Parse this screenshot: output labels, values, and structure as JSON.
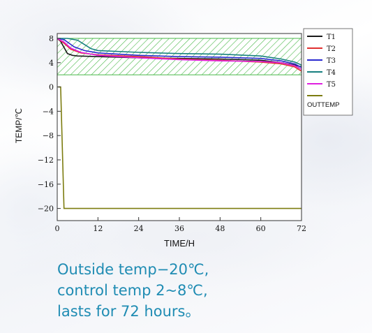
{
  "chart_data": {
    "type": "line",
    "xlabel": "TIME/H",
    "ylabel": "TEMP/℃",
    "xlim": [
      0,
      72
    ],
    "ylim": [
      -22,
      8.8
    ],
    "xticks": [
      0,
      12,
      24,
      36,
      48,
      60,
      72
    ],
    "yticks": [
      8,
      4,
      0,
      -4,
      -8,
      -12,
      -16,
      -20
    ],
    "grid": false,
    "legend_position": "right",
    "control_band": {
      "min": 2,
      "max": 8,
      "pattern": "green diagonal hatch"
    },
    "series": [
      {
        "name": "T1",
        "color": "#1a1a1a",
        "x": [
          0,
          1,
          3,
          4.5,
          6,
          12,
          24,
          36,
          48,
          60,
          66,
          70,
          72
        ],
        "y": [
          8,
          7.5,
          5.5,
          5.2,
          5.1,
          5.0,
          4.8,
          4.7,
          4.6,
          4.4,
          4.0,
          3.6,
          3.3
        ]
      },
      {
        "name": "T2",
        "color": "#e03030",
        "x": [
          0,
          2,
          4,
          7,
          12,
          24,
          36,
          48,
          60,
          66,
          70,
          72
        ],
        "y": [
          8,
          7.2,
          6.2,
          5.6,
          5.3,
          5.0,
          4.6,
          4.4,
          4.1,
          3.8,
          3.3,
          2.6
        ]
      },
      {
        "name": "T3",
        "color": "#2a2ad0",
        "x": [
          0,
          2,
          5,
          8,
          12,
          24,
          36,
          48,
          60,
          66,
          70,
          72
        ],
        "y": [
          8,
          7.8,
          6.6,
          6.0,
          5.6,
          5.2,
          5.0,
          4.9,
          4.7,
          4.3,
          3.8,
          3.2
        ]
      },
      {
        "name": "T4",
        "color": "#178080",
        "x": [
          0,
          3,
          6,
          8,
          10,
          12,
          24,
          36,
          48,
          60,
          66,
          70,
          72
        ],
        "y": [
          8,
          8.0,
          7.7,
          7.0,
          6.3,
          6.0,
          5.7,
          5.5,
          5.4,
          5.1,
          4.6,
          4.1,
          3.6
        ]
      },
      {
        "name": "T5",
        "color": "#e020e0",
        "x": [
          0,
          2,
          4,
          7,
          12,
          24,
          36,
          48,
          60,
          66,
          70,
          72
        ],
        "y": [
          8,
          7.4,
          6.4,
          5.7,
          5.2,
          4.8,
          4.5,
          4.3,
          4.2,
          4.0,
          3.5,
          2.9
        ]
      },
      {
        "name": "OUTTEMP",
        "color": "#7c7c10",
        "x": [
          0.3,
          1.0,
          2.0,
          3.0,
          72
        ],
        "y": [
          0,
          0,
          -20,
          -20,
          -20
        ]
      }
    ]
  },
  "caption": {
    "line1": "Outside temp−20℃,",
    "line2": "control temp 2~8℃,",
    "line3": "lasts for 72 hours。"
  }
}
